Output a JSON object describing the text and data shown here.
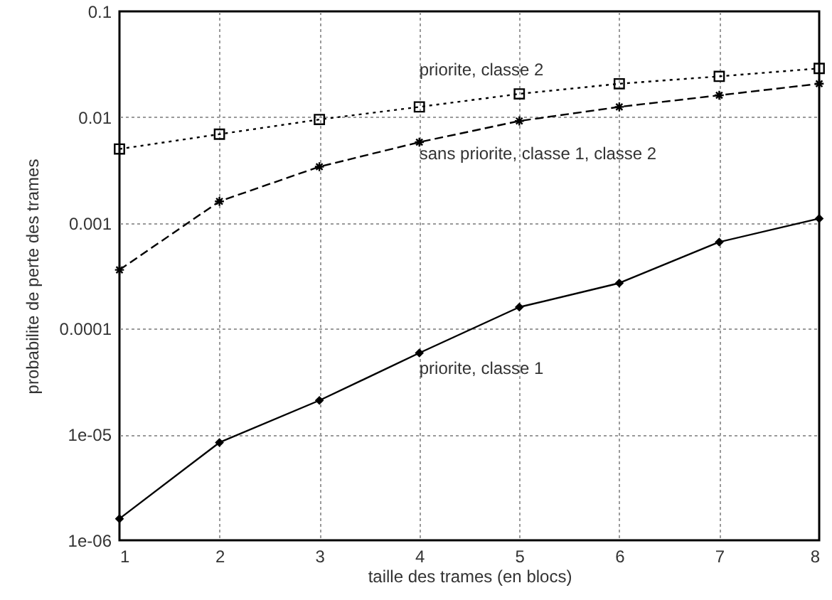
{
  "chart_data": {
    "type": "line",
    "xlabel": "taille des trames (en blocs)",
    "ylabel": "probabilite de perte des trames",
    "x": [
      1,
      2,
      3,
      4,
      5,
      6,
      7,
      8
    ],
    "xlim": [
      1,
      8
    ],
    "xticks": [
      1,
      2,
      3,
      4,
      5,
      6,
      7,
      8
    ],
    "ylim": [
      1e-06,
      0.1
    ],
    "yticks": [
      0.1,
      0.01,
      0.001,
      0.0001,
      {
        "value": 1e-05,
        "label": "1e-05"
      },
      {
        "value": 1e-06,
        "label": "1e-06"
      }
    ],
    "log": "y",
    "grid": true,
    "series": [
      {
        "name": "priorite, classe 2",
        "color": "#000000",
        "marker": "square",
        "line_style": "dotted",
        "values": [
          0.005,
          0.0069,
          0.0095,
          0.0125,
          0.0166,
          0.0207,
          0.0243,
          0.0289
        ]
      },
      {
        "name": "sans priorite, classe 1, classe 2",
        "color": "#000000",
        "marker": "cross",
        "line_style": "dashed",
        "values": [
          0.00036,
          0.0016,
          0.0034,
          0.0058,
          0.0092,
          0.0125,
          0.0161,
          0.0207
        ]
      },
      {
        "name": "priorite, classe 1",
        "color": "#000000",
        "marker": "diamond",
        "line_style": "solid",
        "values": [
          1.6e-06,
          8.4e-06,
          2.1e-05,
          5.9e-05,
          0.00016,
          0.00027,
          0.00066,
          0.0011
        ]
      }
    ]
  }
}
